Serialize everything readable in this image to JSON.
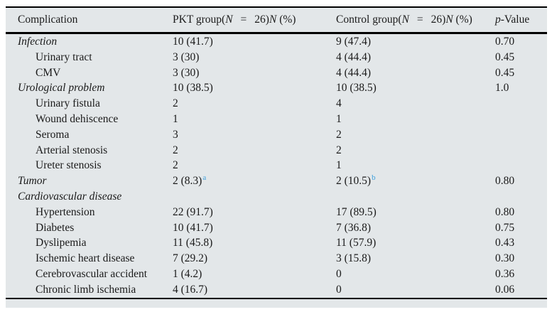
{
  "table": {
    "header": {
      "complication": "Complication",
      "pkt": {
        "pre": "PKT group(",
        "n1": "N",
        "eq": "=",
        "num": "26)",
        "n2": "N",
        "pct": " (%)"
      },
      "control": {
        "pre": "Control group(",
        "n1": "N",
        "eq": "=",
        "num": "26)",
        "n2": "N",
        "pct": " (%)"
      },
      "pvalue": {
        "p": "p",
        "rest": "-Value"
      }
    },
    "rows": [
      {
        "label": "Infection",
        "level": 0,
        "italic": true,
        "pkt": "10 (41.7)",
        "control": "9 (47.4)",
        "p": "0.70"
      },
      {
        "label": "Urinary tract",
        "level": 1,
        "italic": false,
        "pkt": "3 (30)",
        "control": "4 (44.4)",
        "p": "0.45"
      },
      {
        "label": "CMV",
        "level": 1,
        "italic": false,
        "pkt": "3 (30)",
        "control": "4 (44.4)",
        "p": "0.45"
      },
      {
        "label": "Urological problem",
        "level": 0,
        "italic": true,
        "pkt": "10 (38.5)",
        "control": "10 (38.5)",
        "p": "1.0"
      },
      {
        "label": "Urinary fistula",
        "level": 1,
        "italic": false,
        "pkt": "2",
        "control": "4",
        "p": ""
      },
      {
        "label": "Wound dehiscence",
        "level": 1,
        "italic": false,
        "pkt": "1",
        "control": "1",
        "p": ""
      },
      {
        "label": "Seroma",
        "level": 1,
        "italic": false,
        "pkt": "3",
        "control": "2",
        "p": ""
      },
      {
        "label": "Arterial stenosis",
        "level": 1,
        "italic": false,
        "pkt": "2",
        "control": "2",
        "p": ""
      },
      {
        "label": "Ureter stenosis",
        "level": 1,
        "italic": false,
        "pkt": "2",
        "control": "1",
        "p": ""
      },
      {
        "label": "Tumor",
        "level": 0,
        "italic": true,
        "pkt": "2 (8.3)",
        "pkt_sup": "a",
        "control": "2 (10.5)",
        "control_sup": "b",
        "p": "0.80"
      },
      {
        "label": "Cardiovascular disease",
        "level": 0,
        "italic": true,
        "pkt": "",
        "control": "",
        "p": ""
      },
      {
        "label": "Hypertension",
        "level": 1,
        "italic": false,
        "pkt": "22 (91.7)",
        "control": "17 (89.5)",
        "p": "0.80"
      },
      {
        "label": "Diabetes",
        "level": 1,
        "italic": false,
        "pkt": "10 (41.7)",
        "control": "7 (36.8)",
        "p": "0.75"
      },
      {
        "label": "Dyslipemia",
        "level": 1,
        "italic": false,
        "pkt": "11 (45.8)",
        "control": "11 (57.9)",
        "p": "0.43"
      },
      {
        "label": "Ischemic heart disease",
        "level": 1,
        "italic": false,
        "pkt": "7 (29.2)",
        "control": "3 (15.8)",
        "p": "0.30"
      },
      {
        "label": "Cerebrovascular accident",
        "level": 1,
        "italic": false,
        "pkt": "1 (4.2)",
        "control": "0",
        "p": "0.36"
      },
      {
        "label": "Chronic limb ischemia",
        "level": 1,
        "italic": false,
        "pkt": "4 (16.7)",
        "control": "0",
        "p": "0.06"
      }
    ]
  },
  "colors": {
    "table_background": "#e3e7e9",
    "text": "#1a1a1a",
    "rule": "#000000",
    "superscript_accent": "#3f9fdb"
  }
}
